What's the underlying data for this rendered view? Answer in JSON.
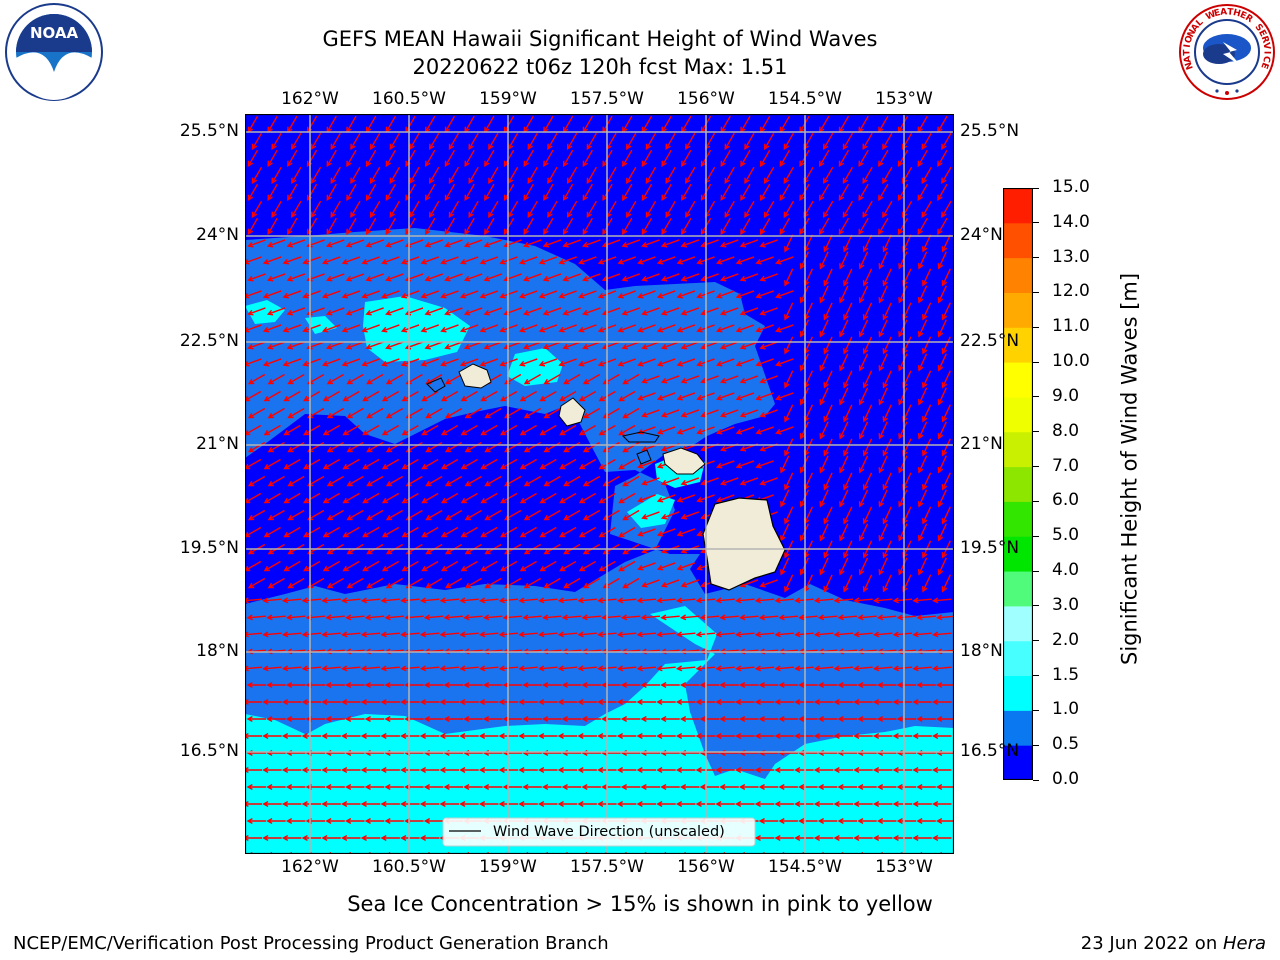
{
  "title_line1": "GEFS MEAN Hawaii Significant Height of Wind Waves",
  "title_line2": "20220622 t06z 120h fcst   Max: 1.51",
  "lon_labels": [
    "162°W",
    "160.5°W",
    "159°W",
    "157.5°W",
    "156°W",
    "154.5°W",
    "153°W"
  ],
  "lat_labels": [
    "25.5°N",
    "24°N",
    "22.5°N",
    "21°N",
    "19.5°N",
    "18°N",
    "16.5°N"
  ],
  "colorbar": {
    "label": "Significant Height of Wind Waves [m]",
    "ticks": [
      "0.0",
      "0.5",
      "1.0",
      "1.5",
      "2.0",
      "3.0",
      "4.0",
      "5.0",
      "6.0",
      "7.0",
      "8.0",
      "9.0",
      "10.0",
      "11.0",
      "12.0",
      "13.0",
      "14.0",
      "15.0"
    ],
    "colors": [
      "#0000ff",
      "#0a78f0",
      "#00ffff",
      "#48ffff",
      "#a0ffff",
      "#50fa7a",
      "#00e600",
      "#32e600",
      "#8ce600",
      "#c8f000",
      "#f0ff00",
      "#ffff00",
      "#ffd200",
      "#ffaa00",
      "#ff8200",
      "#ff5000",
      "#ff1e00"
    ]
  },
  "legend_label": "Wind Wave Direction (unscaled)",
  "note": "Sea Ice Concentration > 15% is shown in pink to yellow",
  "footer_left": "NCEP/EMC/Verification Post Processing Product Generation Branch",
  "footer_right_prefix": "23 Jun 2022 on ",
  "footer_right_host": "Hera",
  "logo_noaa": "NOAA",
  "logo_nws": "NATIONAL WEATHER SERVICE",
  "colors": {
    "deep": "#0000ff",
    "mid": "#1a74f0",
    "light": "#00ffff",
    "pale": "#46ffff",
    "land": "#f0ecd8",
    "arrow": "#ff0000",
    "grid": "#b4b4b4"
  }
}
